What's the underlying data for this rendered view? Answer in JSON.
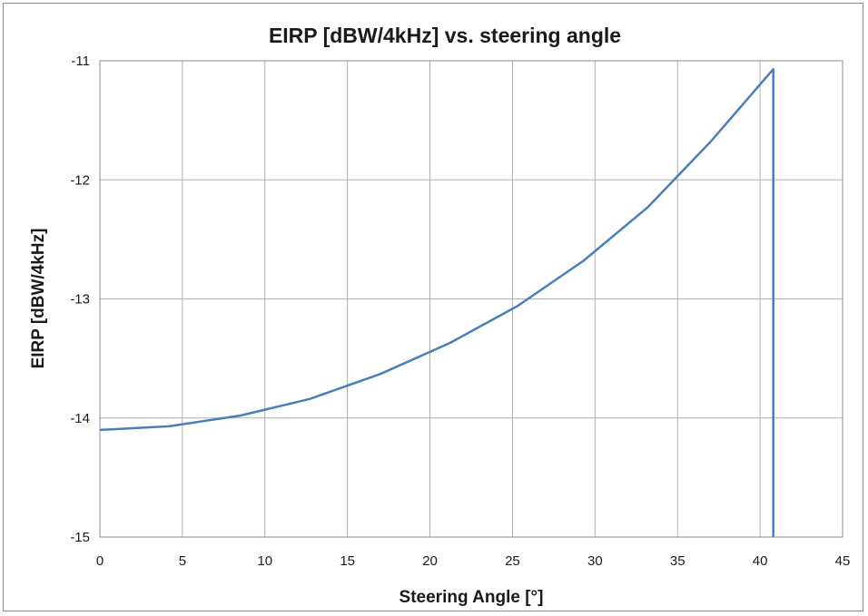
{
  "chart_data": {
    "type": "line",
    "title": "EIRP [dBW/4kHz] vs. steering angle",
    "xlabel": "Steering Angle [°]",
    "ylabel": "EIRP [dBW/4kHz]",
    "xlim": [
      0,
      45
    ],
    "ylim": [
      -15,
      -11
    ],
    "xticks": [
      "0",
      "5",
      "10",
      "15",
      "20",
      "25",
      "30",
      "35",
      "40",
      "45"
    ],
    "yticks": [
      "-11",
      "-12",
      "-13",
      "-14",
      "-15"
    ],
    "grid": true,
    "legend": "none",
    "series": [
      {
        "color": "#4a7ebb",
        "x": [
          0,
          4.2,
          8.5,
          12.7,
          17,
          21.2,
          25.3,
          29.3,
          33.2,
          37,
          40.8,
          40.8
        ],
        "y": [
          -14.1,
          -14.07,
          -13.98,
          -13.84,
          -13.63,
          -13.37,
          -13.06,
          -12.68,
          -12.23,
          -11.68,
          -11.07,
          -15
        ]
      }
    ]
  }
}
